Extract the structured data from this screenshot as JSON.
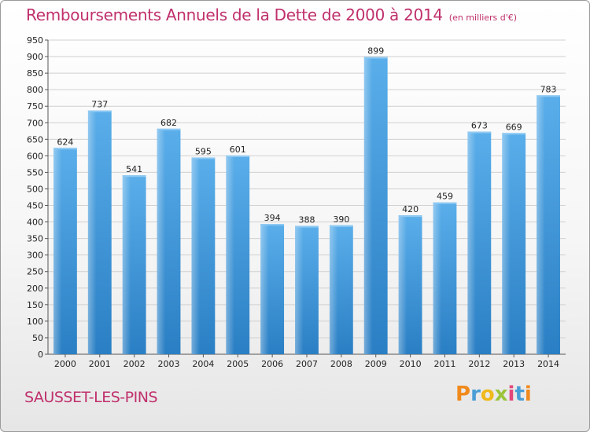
{
  "header": {
    "title": "Remboursements Annuels de la Dette de 2000 à 2014",
    "unit": "(en milliers d'€)"
  },
  "footer": {
    "commune": "SAUSSET-LES-PINS",
    "logo_letters": [
      "P",
      "r",
      "o",
      "x",
      "i",
      "t",
      "i"
    ]
  },
  "chart_data": {
    "type": "bar",
    "title": "Remboursements Annuels de la Dette de 2000 à 2014",
    "subtitle": "(en milliers d'€)",
    "categories": [
      "2000",
      "2001",
      "2002",
      "2003",
      "2004",
      "2005",
      "2006",
      "2007",
      "2008",
      "2009",
      "2010",
      "2011",
      "2012",
      "2013",
      "2014"
    ],
    "values": [
      624,
      737,
      541,
      682,
      595,
      601,
      394,
      388,
      390,
      899,
      420,
      459,
      673,
      669,
      783
    ],
    "ylim": [
      0,
      950
    ],
    "yticks": [
      0,
      50,
      100,
      150,
      200,
      250,
      300,
      350,
      400,
      450,
      500,
      550,
      600,
      650,
      700,
      750,
      800,
      850,
      900,
      950
    ],
    "grid": true,
    "bar_color": "#4a9ee0",
    "bar_color_dark": "#2a7fc4",
    "title_color": "#c0306c"
  }
}
